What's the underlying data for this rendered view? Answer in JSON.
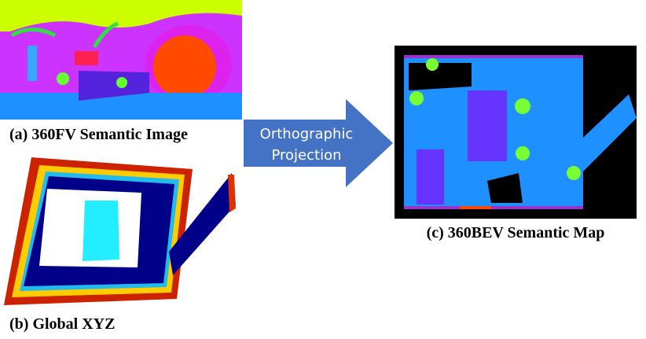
{
  "panels": [
    {
      "caption": "(a) 360FV Semantic Image"
    },
    {
      "caption": "(b) Global XYZ"
    },
    {
      "caption": "(c) 360BEV Semantic Map"
    }
  ],
  "arrow": {
    "lines": [
      "Orthographic",
      "Projection"
    ]
  }
}
